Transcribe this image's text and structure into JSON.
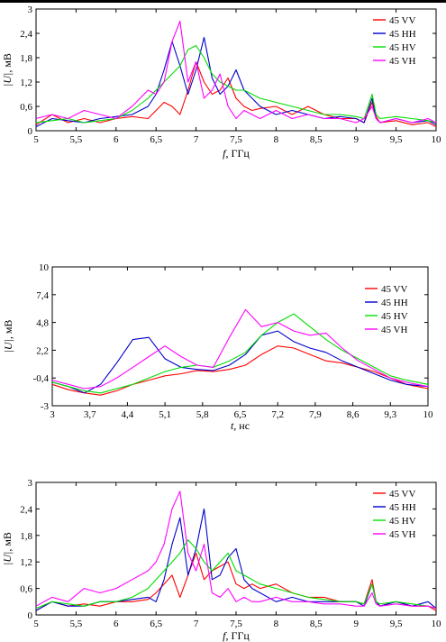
{
  "chart_data": [
    {
      "type": "line",
      "xlabel_italic": "f",
      "xlabel_rest": ", ГГц",
      "ylabel_italic": "|U|",
      "ylabel_rest": ", мВ",
      "xlim": [
        5,
        10
      ],
      "ylim": [
        0,
        3
      ],
      "x_ticks": [
        5,
        5.5,
        6,
        6.5,
        7,
        7.5,
        8,
        8.5,
        9,
        9.5,
        10
      ],
      "x_tick_labels": [
        "5",
        "5,5",
        "6",
        "6,5",
        "7",
        "7,5",
        "8",
        "8,5",
        "9",
        "9,5",
        "10"
      ],
      "y_ticks": [
        0,
        0.6,
        1.2,
        1.8,
        2.4,
        3
      ],
      "y_tick_labels": [
        "0",
        "0,6",
        "1,2",
        "1,8",
        "2,4",
        "3"
      ],
      "legend_position": "top-right",
      "series": [
        {
          "name": "45 VV",
          "color": "#ff0000",
          "x": [
            5,
            5.2,
            5.4,
            5.6,
            5.8,
            6.0,
            6.2,
            6.4,
            6.5,
            6.6,
            6.7,
            6.8,
            6.9,
            7.0,
            7.1,
            7.2,
            7.3,
            7.4,
            7.5,
            7.6,
            7.7,
            7.8,
            8.0,
            8.2,
            8.4,
            8.6,
            8.8,
            9.0,
            9.1,
            9.2,
            9.25,
            9.3,
            9.5,
            9.7,
            9.9,
            10
          ],
          "y": [
            0.15,
            0.4,
            0.2,
            0.3,
            0.2,
            0.3,
            0.35,
            0.3,
            0.5,
            0.7,
            0.6,
            0.4,
            1.0,
            1.7,
            1.2,
            0.9,
            1.0,
            1.3,
            0.8,
            0.6,
            0.5,
            0.55,
            0.6,
            0.4,
            0.6,
            0.4,
            0.3,
            0.3,
            0.2,
            0.7,
            0.35,
            0.2,
            0.25,
            0.15,
            0.2,
            0.1
          ]
        },
        {
          "name": "45 HH",
          "color": "#0000cc",
          "x": [
            5,
            5.2,
            5.4,
            5.6,
            5.8,
            6.0,
            6.2,
            6.4,
            6.5,
            6.6,
            6.7,
            6.8,
            6.9,
            7.0,
            7.1,
            7.2,
            7.3,
            7.4,
            7.5,
            7.6,
            7.7,
            7.8,
            8.0,
            8.2,
            8.4,
            8.6,
            8.8,
            9.0,
            9.1,
            9.2,
            9.25,
            9.3,
            9.5,
            9.7,
            9.9,
            10
          ],
          "y": [
            0.1,
            0.3,
            0.25,
            0.2,
            0.3,
            0.35,
            0.4,
            0.6,
            0.9,
            1.5,
            2.2,
            1.6,
            0.9,
            1.5,
            2.3,
            1.3,
            0.9,
            1.1,
            1.5,
            1.0,
            0.8,
            0.6,
            0.4,
            0.5,
            0.4,
            0.3,
            0.35,
            0.3,
            0.2,
            0.8,
            0.3,
            0.2,
            0.3,
            0.2,
            0.25,
            0.15
          ]
        },
        {
          "name": "45 HV",
          "color": "#00dd00",
          "x": [
            5,
            5.2,
            5.4,
            5.6,
            5.8,
            6.0,
            6.2,
            6.4,
            6.5,
            6.6,
            6.7,
            6.8,
            6.9,
            7.0,
            7.1,
            7.2,
            7.3,
            7.4,
            7.5,
            7.6,
            7.7,
            7.8,
            8.0,
            8.2,
            8.4,
            8.6,
            8.8,
            9.0,
            9.1,
            9.2,
            9.25,
            9.3,
            9.5,
            9.7,
            9.9,
            10
          ],
          "y": [
            0.2,
            0.25,
            0.3,
            0.2,
            0.25,
            0.3,
            0.5,
            0.8,
            1.0,
            1.2,
            1.4,
            1.6,
            2.0,
            2.1,
            1.8,
            1.4,
            1.2,
            1.1,
            1.0,
            1.0,
            0.9,
            0.8,
            0.7,
            0.6,
            0.5,
            0.4,
            0.4,
            0.35,
            0.3,
            0.9,
            0.4,
            0.3,
            0.35,
            0.3,
            0.25,
            0.2
          ]
        },
        {
          "name": "45 VH",
          "color": "#ff00ff",
          "x": [
            5,
            5.2,
            5.4,
            5.6,
            5.8,
            6.0,
            6.2,
            6.4,
            6.5,
            6.6,
            6.7,
            6.8,
            6.9,
            7.0,
            7.1,
            7.2,
            7.3,
            7.4,
            7.5,
            7.6,
            7.7,
            7.8,
            8.0,
            8.2,
            8.4,
            8.6,
            8.8,
            9.0,
            9.1,
            9.2,
            9.25,
            9.3,
            9.5,
            9.7,
            9.9,
            10
          ],
          "y": [
            0.3,
            0.4,
            0.3,
            0.5,
            0.4,
            0.3,
            0.6,
            1.0,
            0.9,
            1.2,
            2.2,
            2.7,
            1.2,
            1.7,
            0.8,
            1.0,
            1.4,
            0.6,
            0.3,
            0.5,
            0.4,
            0.3,
            0.5,
            0.3,
            0.4,
            0.3,
            0.3,
            0.2,
            0.3,
            0.6,
            0.3,
            0.2,
            0.3,
            0.2,
            0.3,
            0.2
          ]
        }
      ]
    },
    {
      "type": "line",
      "xlabel_italic": "t",
      "xlabel_rest": ", нс",
      "ylabel_italic": "|U|",
      "ylabel_rest": ", мВ",
      "xlim": [
        3,
        10
      ],
      "ylim": [
        -3,
        10
      ],
      "x_ticks": [
        3,
        3.7,
        4.4,
        5.1,
        5.8,
        6.5,
        7.2,
        7.9,
        8.6,
        9.3,
        10
      ],
      "x_tick_labels": [
        "3",
        "3,7",
        "4,4",
        "5,1",
        "5,8",
        "6,5",
        "7,2",
        "7,9",
        "8,6",
        "9,3",
        "10"
      ],
      "y_ticks": [
        -3,
        -0.4,
        2.2,
        4.8,
        7.4,
        10
      ],
      "y_tick_labels": [
        "-3",
        "-0,4",
        "2,2",
        "4,8",
        "7,4",
        "10"
      ],
      "legend_position": "right",
      "series": [
        {
          "name": "45 VV",
          "color": "#ff0000",
          "x": [
            3,
            3.3,
            3.6,
            3.9,
            4.2,
            4.5,
            4.8,
            5.1,
            5.4,
            5.7,
            6.0,
            6.3,
            6.6,
            6.9,
            7.2,
            7.5,
            7.8,
            8.1,
            8.4,
            8.7,
            9.0,
            9.3,
            9.6,
            10
          ],
          "y": [
            -1.0,
            -1.5,
            -1.8,
            -2.0,
            -1.6,
            -1.0,
            -0.6,
            -0.2,
            0.0,
            0.3,
            0.2,
            0.4,
            0.8,
            1.8,
            2.6,
            2.4,
            1.8,
            1.2,
            1.0,
            0.6,
            0.2,
            -0.4,
            -1.0,
            -1.4
          ]
        },
        {
          "name": "45 HH",
          "color": "#0000cc",
          "x": [
            3,
            3.3,
            3.6,
            3.9,
            4.2,
            4.5,
            4.8,
            5.1,
            5.4,
            5.7,
            6.0,
            6.3,
            6.6,
            6.9,
            7.2,
            7.5,
            7.8,
            8.1,
            8.4,
            8.7,
            9.0,
            9.3,
            9.6,
            10
          ],
          "y": [
            -0.8,
            -1.2,
            -1.8,
            -1.0,
            1.0,
            3.2,
            3.4,
            1.4,
            0.6,
            0.4,
            0.3,
            0.8,
            1.8,
            3.6,
            4.0,
            3.0,
            2.4,
            2.0,
            1.2,
            0.6,
            0.0,
            -0.6,
            -1.0,
            -1.2
          ]
        },
        {
          "name": "45 HV",
          "color": "#00dd00",
          "x": [
            3,
            3.3,
            3.6,
            3.9,
            4.2,
            4.5,
            4.8,
            5.1,
            5.4,
            5.7,
            6.0,
            6.3,
            6.6,
            6.9,
            7.2,
            7.5,
            7.8,
            8.1,
            8.4,
            8.7,
            9.0,
            9.3,
            9.6,
            10
          ],
          "y": [
            -0.8,
            -1.2,
            -1.6,
            -1.8,
            -1.4,
            -1.0,
            -0.4,
            0.2,
            0.6,
            0.8,
            0.6,
            1.2,
            2.0,
            3.6,
            4.8,
            5.6,
            4.4,
            3.2,
            2.2,
            1.4,
            0.6,
            -0.2,
            -0.6,
            -1.0
          ]
        },
        {
          "name": "45 VH",
          "color": "#ff00ff",
          "x": [
            3,
            3.3,
            3.6,
            3.9,
            4.2,
            4.5,
            4.8,
            5.1,
            5.4,
            5.7,
            6.0,
            6.3,
            6.6,
            6.9,
            7.2,
            7.5,
            7.8,
            8.1,
            8.4,
            8.7,
            9.0,
            9.3,
            9.6,
            10
          ],
          "y": [
            -0.6,
            -1.0,
            -1.4,
            -1.2,
            -0.4,
            0.6,
            1.6,
            2.6,
            1.6,
            0.8,
            0.6,
            3.4,
            6.0,
            4.4,
            4.8,
            4.0,
            3.6,
            3.8,
            2.4,
            1.2,
            0.4,
            -0.4,
            -0.8,
            -1.2
          ]
        }
      ]
    },
    {
      "type": "line",
      "xlabel_italic": "f",
      "xlabel_rest": ", ГГц",
      "ylabel_italic": "|U|",
      "ylabel_rest": ", мВ",
      "xlim": [
        5,
        10
      ],
      "ylim": [
        0,
        3
      ],
      "x_ticks": [
        5,
        5.5,
        6,
        6.5,
        7,
        7.5,
        8,
        8.5,
        9,
        9.5,
        10
      ],
      "x_tick_labels": [
        "5",
        "5,5",
        "6",
        "6,5",
        "7",
        "7,5",
        "8",
        "8,5",
        "9",
        "9,5",
        "10"
      ],
      "y_ticks": [
        0,
        0.6,
        1.2,
        1.8,
        2.4,
        3
      ],
      "y_tick_labels": [
        "0",
        "0,6",
        "1,2",
        "1,8",
        "2,4",
        "3"
      ],
      "legend_position": "top-right",
      "series": [
        {
          "name": "45 VV",
          "color": "#ff0000",
          "x": [
            5,
            5.2,
            5.4,
            5.6,
            5.8,
            6.0,
            6.2,
            6.4,
            6.5,
            6.6,
            6.7,
            6.8,
            6.9,
            7.0,
            7.1,
            7.2,
            7.3,
            7.4,
            7.5,
            7.6,
            7.7,
            7.8,
            8.0,
            8.2,
            8.4,
            8.6,
            8.8,
            9.0,
            9.1,
            9.2,
            9.25,
            9.3,
            9.5,
            9.7,
            9.9,
            10
          ],
          "y": [
            0.1,
            0.3,
            0.2,
            0.25,
            0.2,
            0.3,
            0.3,
            0.35,
            0.5,
            0.7,
            0.9,
            0.4,
            0.9,
            1.4,
            0.8,
            1.0,
            1.1,
            1.2,
            0.7,
            0.6,
            0.7,
            0.6,
            0.7,
            0.5,
            0.4,
            0.4,
            0.3,
            0.3,
            0.25,
            0.8,
            0.3,
            0.2,
            0.3,
            0.2,
            0.2,
            0.1
          ]
        },
        {
          "name": "45 HH",
          "color": "#0000cc",
          "x": [
            5,
            5.2,
            5.4,
            5.6,
            5.8,
            6.0,
            6.2,
            6.4,
            6.5,
            6.6,
            6.7,
            6.8,
            6.9,
            7.0,
            7.1,
            7.2,
            7.3,
            7.4,
            7.5,
            7.6,
            7.7,
            7.8,
            8.0,
            8.2,
            8.4,
            8.6,
            8.8,
            9.0,
            9.1,
            9.2,
            9.25,
            9.3,
            9.5,
            9.7,
            9.9,
            10
          ],
          "y": [
            0.1,
            0.3,
            0.2,
            0.2,
            0.3,
            0.3,
            0.35,
            0.4,
            0.3,
            0.8,
            1.6,
            2.2,
            0.9,
            1.5,
            2.4,
            0.8,
            0.9,
            1.3,
            1.5,
            0.8,
            0.6,
            0.5,
            0.3,
            0.4,
            0.3,
            0.3,
            0.3,
            0.3,
            0.2,
            0.7,
            0.3,
            0.2,
            0.3,
            0.2,
            0.3,
            0.15
          ]
        },
        {
          "name": "45 HV",
          "color": "#00dd00",
          "x": [
            5,
            5.2,
            5.4,
            5.6,
            5.8,
            6.0,
            6.2,
            6.4,
            6.5,
            6.6,
            6.7,
            6.8,
            6.9,
            7.0,
            7.1,
            7.2,
            7.3,
            7.4,
            7.5,
            7.6,
            7.7,
            7.8,
            8.0,
            8.2,
            8.4,
            8.6,
            8.8,
            9.0,
            9.1,
            9.2,
            9.25,
            9.3,
            9.5,
            9.7,
            9.9,
            10
          ],
          "y": [
            0.15,
            0.3,
            0.25,
            0.2,
            0.3,
            0.3,
            0.4,
            0.6,
            0.8,
            1.0,
            1.2,
            1.4,
            1.7,
            1.5,
            1.2,
            1.0,
            1.2,
            1.4,
            1.0,
            0.9,
            0.8,
            0.7,
            0.6,
            0.5,
            0.4,
            0.35,
            0.3,
            0.3,
            0.25,
            0.7,
            0.3,
            0.25,
            0.3,
            0.25,
            0.2,
            0.15
          ]
        },
        {
          "name": "45 VH",
          "color": "#ff00ff",
          "x": [
            5,
            5.2,
            5.4,
            5.6,
            5.8,
            6.0,
            6.2,
            6.4,
            6.5,
            6.6,
            6.7,
            6.8,
            6.9,
            7.0,
            7.1,
            7.2,
            7.3,
            7.4,
            7.5,
            7.6,
            7.7,
            7.8,
            8.0,
            8.2,
            8.4,
            8.6,
            8.8,
            9.0,
            9.1,
            9.2,
            9.25,
            9.3,
            9.5,
            9.7,
            9.9,
            10
          ],
          "y": [
            0.2,
            0.4,
            0.3,
            0.6,
            0.5,
            0.6,
            0.8,
            1.0,
            1.2,
            1.6,
            2.4,
            2.8,
            1.4,
            1.0,
            1.6,
            0.5,
            0.4,
            0.6,
            0.3,
            0.4,
            0.3,
            0.3,
            0.4,
            0.3,
            0.3,
            0.25,
            0.25,
            0.2,
            0.2,
            0.5,
            0.25,
            0.2,
            0.25,
            0.2,
            0.2,
            0.15
          ]
        }
      ]
    }
  ]
}
